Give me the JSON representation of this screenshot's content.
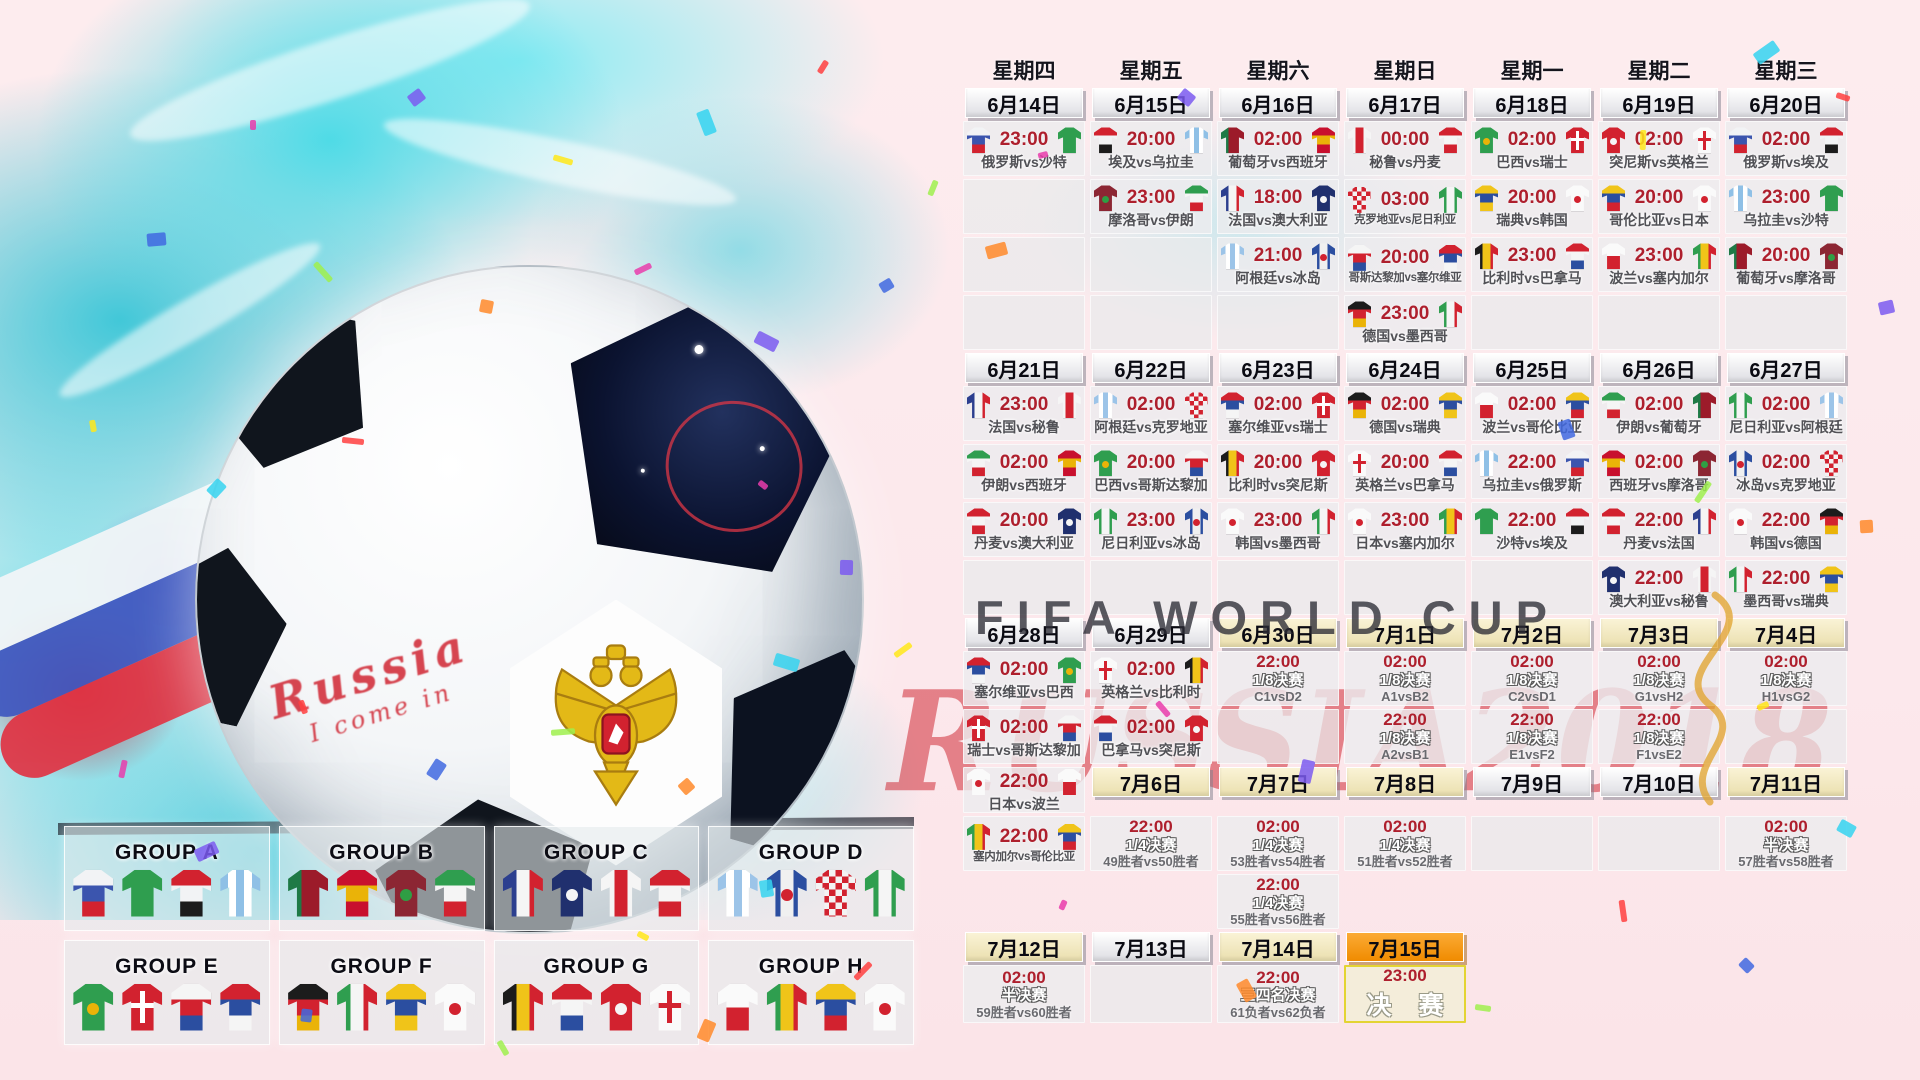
{
  "watermarks": {
    "line1": "FIFA WORLD CUP",
    "line2": "RUSSIA2018"
  },
  "ball": {
    "caption1": "Russia",
    "caption2": "I come in"
  },
  "colors": {
    "accent_red": "#ae1f2d",
    "cyan": "#48dae6",
    "header_cream": "#f3ecc9",
    "final_orange": "#f79420"
  },
  "weekdays": [
    "星期四",
    "星期五",
    "星期六",
    "星期日",
    "星期一",
    "星期二",
    "星期三"
  ],
  "stages": {
    "r16": "1/8决赛",
    "qf": "1/4决赛",
    "sf": "半决赛",
    "third": "三四名决赛",
    "final": "决赛"
  },
  "teams": {
    "俄罗斯": {
      "c": [
        "#f2f3f5",
        "#3b55ae",
        "#d2222f"
      ],
      "d": "h"
    },
    "沙特": {
      "c": [
        "#2f9e4f"
      ],
      "d": "h"
    },
    "埃及": {
      "c": [
        "#d2222f",
        "#f2f3f5",
        "#1c1c1c"
      ],
      "d": "h"
    },
    "乌拉圭": {
      "c": [
        "#8fc0e6",
        "#ffffff",
        "#8fc0e6",
        "#ffffff",
        "#8fc0e6"
      ],
      "d": "v"
    },
    "葡萄牙": {
      "c": [
        "#1e7a46",
        "#9c1b2a",
        "#9c1b2a"
      ],
      "d": "v"
    },
    "西班牙": {
      "c": [
        "#c8102e",
        "#eab308",
        "#c8102e"
      ],
      "d": "h"
    },
    "摩洛哥": {
      "c": [
        "#8c2633"
      ],
      "d": "h",
      "dot": "#2f9e44"
    },
    "伊朗": {
      "c": [
        "#2f9e4f",
        "#f5f5f5",
        "#d2222f"
      ],
      "d": "h"
    },
    "法国": {
      "c": [
        "#2c3f8f",
        "#f5f5f5",
        "#d2222f"
      ],
      "d": "v"
    },
    "澳大利亚": {
      "c": [
        "#20306e"
      ],
      "d": "h",
      "dot": "#f5f5f5"
    },
    "秘鲁": {
      "c": [
        "#f5f5f5",
        "#d2222f",
        "#f5f5f5"
      ],
      "d": "v"
    },
    "丹麦": {
      "c": [
        "#d2222f",
        "#f5f5f5",
        "#d2222f"
      ],
      "d": "h"
    },
    "阿根廷": {
      "c": [
        "#9cc4e8",
        "#ffffff",
        "#9cc4e8",
        "#ffffff",
        "#9cc4e8"
      ],
      "d": "v"
    },
    "冰岛": {
      "c": [
        "#2b4ea0",
        "#f0f0f0",
        "#2b4ea0"
      ],
      "d": "v",
      "dot": "#d2222f"
    },
    "克罗地亚": {
      "checker": true,
      "c": [
        "#d2222f",
        "#f5f5f5"
      ],
      "d": "h"
    },
    "尼日利亚": {
      "c": [
        "#2f9e4f",
        "#f5f5f5",
        "#2f9e4f"
      ],
      "d": "v"
    },
    "巴西": {
      "c": [
        "#2f9e4f"
      ],
      "d": "h",
      "dot": "#eab308"
    },
    "瑞士": {
      "c": [
        "#d2222f"
      ],
      "d": "h",
      "cross": "#ffffff"
    },
    "哥斯达黎加": {
      "c": [
        "#f5f5f5",
        "#d2222f",
        "#2b4ea0"
      ],
      "d": "h"
    },
    "塞尔维亚": {
      "c": [
        "#d2222f",
        "#2b4ea0",
        "#f5f5f5"
      ],
      "d": "h"
    },
    "德国": {
      "c": [
        "#1c1c1c",
        "#d2222f",
        "#eab308"
      ],
      "d": "h"
    },
    "墨西哥": {
      "c": [
        "#2f9e4f",
        "#f5f5f5",
        "#d2222f"
      ],
      "d": "v"
    },
    "瑞典": {
      "c": [
        "#f0c419",
        "#2b4ea0",
        "#f0c419"
      ],
      "d": "h"
    },
    "韩国": {
      "c": [
        "#fafafa"
      ],
      "d": "h",
      "dot": "#d2222f"
    },
    "比利时": {
      "c": [
        "#1c1c1c",
        "#f0c419",
        "#d2222f"
      ],
      "d": "v"
    },
    "巴拿马": {
      "c": [
        "#d2222f",
        "#f5f5f5",
        "#2b4ea0"
      ],
      "d": "h"
    },
    "突尼斯": {
      "c": [
        "#d2222f"
      ],
      "d": "h",
      "dot": "#f5f5f5"
    },
    "英格兰": {
      "c": [
        "#fafafa"
      ],
      "d": "h",
      "cross": "#d2222f"
    },
    "波兰": {
      "c": [
        "#fafafa",
        "#d2222f"
      ],
      "d": "h"
    },
    "塞内加尔": {
      "c": [
        "#2f9e4f",
        "#f0c419",
        "#d2222f"
      ],
      "d": "v"
    },
    "哥伦比亚": {
      "c": [
        "#f0c419",
        "#2b4ea0",
        "#d2222f"
      ],
      "d": "h"
    },
    "日本": {
      "c": [
        "#fafafa"
      ],
      "d": "h",
      "dot": "#d2222f"
    }
  },
  "calendar": {
    "rows": [
      [
        [
          "wd",
          "星期四"
        ],
        [
          "wd",
          "星期五"
        ],
        [
          "wd",
          "星期六"
        ],
        [
          "wd",
          "星期日"
        ],
        [
          "wd",
          "星期一"
        ],
        [
          "wd",
          "星期二"
        ],
        [
          "wd",
          "星期三"
        ]
      ],
      [
        [
          "h",
          "6月14日",
          "p"
        ],
        [
          "h",
          "6月15日",
          "p"
        ],
        [
          "h",
          "6月16日",
          "p"
        ],
        [
          "h",
          "6月17日",
          "p"
        ],
        [
          "h",
          "6月18日",
          "p"
        ],
        [
          "h",
          "6月19日",
          "p"
        ],
        [
          "h",
          "6月20日",
          "p"
        ]
      ],
      [
        [
          "m",
          "23:00",
          "俄罗斯",
          "沙特",
          "俄罗斯vs沙特"
        ],
        [
          "m",
          "20:00",
          "埃及",
          "乌拉圭",
          "埃及vs乌拉圭"
        ],
        [
          "m",
          "02:00",
          "葡萄牙",
          "西班牙",
          "葡萄牙vs西班牙"
        ],
        [
          "m",
          "00:00",
          "秘鲁",
          "丹麦",
          "秘鲁vs丹麦"
        ],
        [
          "m",
          "02:00",
          "巴西",
          "瑞士",
          "巴西vs瑞士"
        ],
        [
          "m",
          "02:00",
          "突尼斯",
          "英格兰",
          "突尼斯vs英格兰"
        ],
        [
          "m",
          "02:00",
          "俄罗斯",
          "埃及",
          "俄罗斯vs埃及"
        ]
      ],
      [
        [
          "e"
        ],
        [
          "m",
          "23:00",
          "摩洛哥",
          "伊朗",
          "摩洛哥vs伊朗"
        ],
        [
          "m",
          "18:00",
          "法国",
          "澳大利亚",
          "法国vs澳大利亚"
        ],
        [
          "m",
          "03:00",
          "克罗地亚",
          "尼日利亚",
          "克罗地亚vs尼日利亚"
        ],
        [
          "m",
          "20:00",
          "瑞典",
          "韩国",
          "瑞典vs韩国"
        ],
        [
          "m",
          "20:00",
          "哥伦比亚",
          "日本",
          "哥伦比亚vs日本"
        ],
        [
          "m",
          "23:00",
          "乌拉圭",
          "沙特",
          "乌拉圭vs沙特"
        ]
      ],
      [
        [
          "e"
        ],
        [
          "e"
        ],
        [
          "m",
          "21:00",
          "阿根廷",
          "冰岛",
          "阿根廷vs冰岛"
        ],
        [
          "m",
          "20:00",
          "哥斯达黎加",
          "塞尔维亚",
          "哥斯达黎加vs塞尔维亚"
        ],
        [
          "m",
          "23:00",
          "比利时",
          "巴拿马",
          "比利时vs巴拿马"
        ],
        [
          "m",
          "23:00",
          "波兰",
          "塞内加尔",
          "波兰vs塞内加尔"
        ],
        [
          "m",
          "20:00",
          "葡萄牙",
          "摩洛哥",
          "葡萄牙vs摩洛哥"
        ]
      ],
      [
        [
          "e"
        ],
        [
          "e"
        ],
        [
          "e"
        ],
        [
          "m",
          "23:00",
          "德国",
          "墨西哥",
          "德国vs墨西哥"
        ],
        [
          "e"
        ],
        [
          "e"
        ],
        [
          "e"
        ]
      ],
      [
        [
          "h",
          "6月21日",
          "p"
        ],
        [
          "h",
          "6月22日",
          "p"
        ],
        [
          "h",
          "6月23日",
          "p"
        ],
        [
          "h",
          "6月24日",
          "p"
        ],
        [
          "h",
          "6月25日",
          "p"
        ],
        [
          "h",
          "6月26日",
          "p"
        ],
        [
          "h",
          "6月27日",
          "p"
        ]
      ],
      [
        [
          "m",
          "23:00",
          "法国",
          "秘鲁",
          "法国vs秘鲁"
        ],
        [
          "m",
          "02:00",
          "阿根廷",
          "克罗地亚",
          "阿根廷vs克罗地亚"
        ],
        [
          "m",
          "02:00",
          "塞尔维亚",
          "瑞士",
          "塞尔维亚vs瑞士"
        ],
        [
          "m",
          "02:00",
          "德国",
          "瑞典",
          "德国vs瑞典"
        ],
        [
          "m",
          "02:00",
          "波兰",
          "哥伦比亚",
          "波兰vs哥伦比亚"
        ],
        [
          "m",
          "02:00",
          "伊朗",
          "葡萄牙",
          "伊朗vs葡萄牙"
        ],
        [
          "m",
          "02:00",
          "尼日利亚",
          "阿根廷",
          "尼日利亚vs阿根廷"
        ]
      ],
      [
        [
          "m",
          "02:00",
          "伊朗",
          "西班牙",
          "伊朗vs西班牙"
        ],
        [
          "m",
          "20:00",
          "巴西",
          "哥斯达黎加",
          "巴西vs哥斯达黎加"
        ],
        [
          "m",
          "20:00",
          "比利时",
          "突尼斯",
          "比利时vs突尼斯"
        ],
        [
          "m",
          "20:00",
          "英格兰",
          "巴拿马",
          "英格兰vs巴拿马"
        ],
        [
          "m",
          "22:00",
          "乌拉圭",
          "俄罗斯",
          "乌拉圭vs俄罗斯"
        ],
        [
          "m",
          "02:00",
          "西班牙",
          "摩洛哥",
          "西班牙vs摩洛哥"
        ],
        [
          "m",
          "02:00",
          "冰岛",
          "克罗地亚",
          "冰岛vs克罗地亚"
        ]
      ],
      [
        [
          "m",
          "20:00",
          "丹麦",
          "澳大利亚",
          "丹麦vs澳大利亚"
        ],
        [
          "m",
          "23:00",
          "尼日利亚",
          "冰岛",
          "尼日利亚vs冰岛"
        ],
        [
          "m",
          "23:00",
          "韩国",
          "墨西哥",
          "韩国vs墨西哥"
        ],
        [
          "m",
          "23:00",
          "日本",
          "塞内加尔",
          "日本vs塞内加尔"
        ],
        [
          "m",
          "22:00",
          "沙特",
          "埃及",
          "沙特vs埃及"
        ],
        [
          "m",
          "22:00",
          "丹麦",
          "法国",
          "丹麦vs法国"
        ],
        [
          "m",
          "22:00",
          "韩国",
          "德国",
          "韩国vs德国"
        ]
      ],
      [
        [
          "e"
        ],
        [
          "e"
        ],
        [
          "e"
        ],
        [
          "e"
        ],
        [
          "e"
        ],
        [
          "m",
          "22:00",
          "澳大利亚",
          "秘鲁",
          "澳大利亚vs秘鲁"
        ],
        [
          "m",
          "22:00",
          "墨西哥",
          "瑞典",
          "墨西哥vs瑞典"
        ]
      ],
      [
        [
          "h",
          "6月28日",
          "p"
        ],
        [
          "h",
          "6月29日",
          "p"
        ],
        [
          "h",
          "6月30日",
          "k"
        ],
        [
          "h",
          "7月1日",
          "k"
        ],
        [
          "h",
          "7月2日",
          "k"
        ],
        [
          "h",
          "7月3日",
          "k"
        ],
        [
          "h",
          "7月4日",
          "k"
        ]
      ],
      [
        [
          "m",
          "02:00",
          "塞尔维亚",
          "巴西",
          "塞尔维亚vs巴西"
        ],
        [
          "m",
          "02:00",
          "英格兰",
          "比利时",
          "英格兰vs比利时"
        ],
        [
          "k",
          "22:00",
          "1/8决赛",
          "C1vsD2"
        ],
        [
          "k",
          "02:00",
          "1/8决赛",
          "A1vsB2"
        ],
        [
          "k",
          "02:00",
          "1/8决赛",
          "C2vsD1"
        ],
        [
          "k",
          "02:00",
          "1/8决赛",
          "G1vsH2"
        ],
        [
          "k",
          "02:00",
          "1/8决赛",
          "H1vsG2"
        ]
      ],
      [
        [
          "m",
          "02:00",
          "瑞士",
          "哥斯达黎加",
          "瑞士vs哥斯达黎加"
        ],
        [
          "m",
          "02:00",
          "巴拿马",
          "突尼斯",
          "巴拿马vs突尼斯"
        ],
        [
          "e"
        ],
        [
          "k",
          "22:00",
          "1/8决赛",
          "A2vsB1"
        ],
        [
          "k",
          "22:00",
          "1/8决赛",
          "E1vsF2"
        ],
        [
          "k",
          "22:00",
          "1/8决赛",
          "F1vsE2"
        ],
        [
          "e"
        ]
      ],
      [
        [
          "m",
          "22:00",
          "日本",
          "波兰",
          "日本vs波兰"
        ],
        [
          "h",
          "7月6日",
          "k"
        ],
        [
          "h",
          "7月7日",
          "k"
        ],
        [
          "h",
          "7月8日",
          "k"
        ],
        [
          "h",
          "7月9日",
          "p"
        ],
        [
          "h",
          "7月10日",
          "p"
        ],
        [
          "h",
          "7月11日",
          "k"
        ]
      ],
      [
        [
          "m",
          "22:00",
          "塞内加尔",
          "哥伦比亚",
          "塞内加尔vs哥伦比亚"
        ],
        [
          "k",
          "22:00",
          "1/4决赛",
          "49胜者vs50胜者"
        ],
        [
          "k",
          "02:00",
          "1/4决赛",
          "53胜者vs54胜者"
        ],
        [
          "k",
          "02:00",
          "1/4决赛",
          "51胜者vs52胜者"
        ],
        [
          "e"
        ],
        [
          "e"
        ],
        [
          "k",
          "02:00",
          "半决赛",
          "57胜者vs58胜者"
        ]
      ],
      [
        [
          "x"
        ],
        [
          "x"
        ],
        [
          "k",
          "22:00",
          "1/4决赛",
          "55胜者vs56胜者"
        ],
        [
          "x"
        ],
        [
          "x"
        ],
        [
          "x"
        ],
        [
          "x"
        ]
      ],
      [
        [
          "h",
          "7月12日",
          "k"
        ],
        [
          "h",
          "7月13日",
          "p"
        ],
        [
          "h",
          "7月14日",
          "k"
        ],
        [
          "h",
          "7月15日",
          "f"
        ],
        [
          "x"
        ],
        [
          "x"
        ],
        [
          "x"
        ]
      ],
      [
        [
          "k",
          "02:00",
          "半决赛",
          "59胜者vs60胜者"
        ],
        [
          "e"
        ],
        [
          "k",
          "22:00",
          "三四名决赛",
          "61负者vs62负者"
        ],
        [
          "f",
          "23:00",
          "决 赛"
        ],
        [
          "x"
        ],
        [
          "x"
        ],
        [
          "x"
        ]
      ]
    ]
  },
  "groups": [
    {
      "name": "GROUP A",
      "teams": [
        "俄罗斯",
        "沙特",
        "埃及",
        "乌拉圭"
      ]
    },
    {
      "name": "GROUP B",
      "teams": [
        "葡萄牙",
        "西班牙",
        "摩洛哥",
        "伊朗"
      ]
    },
    {
      "name": "GROUP C",
      "teams": [
        "法国",
        "澳大利亚",
        "秘鲁",
        "丹麦"
      ]
    },
    {
      "name": "GROUP D",
      "teams": [
        "阿根廷",
        "冰岛",
        "克罗地亚",
        "尼日利亚"
      ]
    },
    {
      "name": "GROUP E",
      "teams": [
        "巴西",
        "瑞士",
        "哥斯达黎加",
        "塞尔维亚"
      ]
    },
    {
      "name": "GROUP F",
      "teams": [
        "德国",
        "墨西哥",
        "瑞典",
        "韩国"
      ]
    },
    {
      "name": "GROUP G",
      "teams": [
        "比利时",
        "巴拿马",
        "突尼斯",
        "英格兰"
      ]
    },
    {
      "name": "GROUP H",
      "teams": [
        "波兰",
        "塞内加尔",
        "哥伦比亚",
        "日本"
      ]
    }
  ]
}
